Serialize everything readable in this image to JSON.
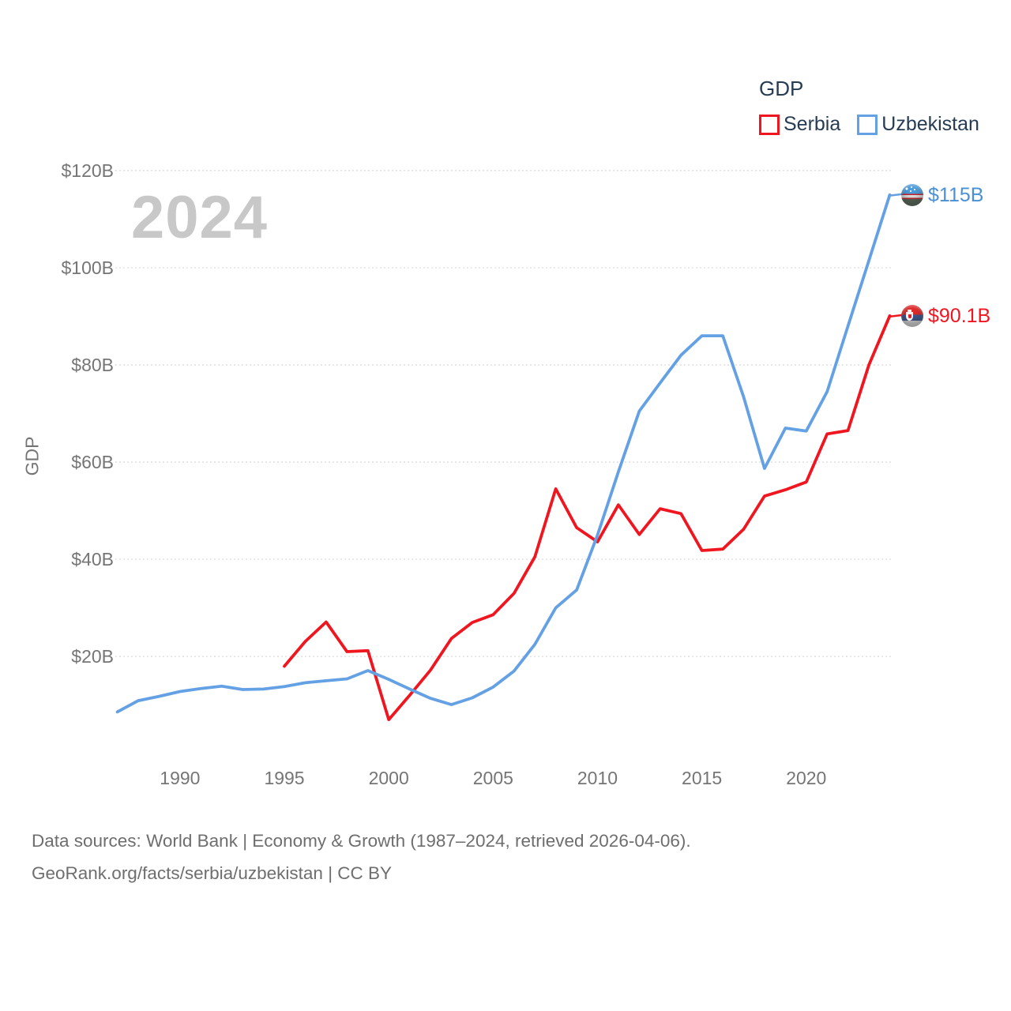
{
  "watermark": "2024",
  "y_axis_title": "GDP",
  "legend": {
    "title": "GDP",
    "entries": [
      {
        "label": "Serbia",
        "color": "#f01620"
      },
      {
        "label": "Uzbekistan",
        "color": "#64a1e4"
      }
    ]
  },
  "end_labels": {
    "uzbekistan": {
      "value": "$115B",
      "flag": "uzbekistan-flag"
    },
    "serbia": {
      "value": "$90.1B",
      "flag": "serbia-flag"
    }
  },
  "footer": {
    "line1": "Data sources: World Bank | Economy & Growth (1987–2024, retrieved 2026-04-06).",
    "line2": "GeoRank.org/facts/serbia/uzbekistan | CC BY"
  },
  "chart_data": {
    "type": "line",
    "title": "GDP",
    "ylabel": "GDP",
    "xlabel": "",
    "grid": "horizontal-dotted",
    "legend_position": "top-right",
    "xlim": [
      1987,
      2024
    ],
    "ylim": [
      0,
      120
    ],
    "x": [
      1987,
      1988,
      1989,
      1990,
      1991,
      1992,
      1993,
      1994,
      1995,
      1996,
      1997,
      1998,
      1999,
      2000,
      2001,
      2002,
      2003,
      2004,
      2005,
      2006,
      2007,
      2008,
      2009,
      2010,
      2011,
      2012,
      2013,
      2014,
      2015,
      2016,
      2017,
      2018,
      2019,
      2020,
      2021,
      2022,
      2023,
      2024
    ],
    "x_ticks": [
      1990,
      1995,
      2000,
      2005,
      2010,
      2015,
      2020
    ],
    "y_ticks": [
      {
        "value": 20,
        "label": "$20B"
      },
      {
        "value": 40,
        "label": "$40B"
      },
      {
        "value": 60,
        "label": "$60B"
      },
      {
        "value": 80,
        "label": "$80B"
      },
      {
        "value": 100,
        "label": "$100B"
      },
      {
        "value": 120,
        "label": "$120B"
      }
    ],
    "series": [
      {
        "name": "Serbia",
        "color": "#f01620",
        "values": [
          null,
          null,
          null,
          null,
          null,
          null,
          null,
          null,
          18.0,
          23.1,
          27.1,
          21.0,
          21.2,
          7.0,
          12.0,
          17.2,
          23.7,
          27.0,
          28.6,
          33.0,
          40.5,
          54.5,
          46.5,
          43.6,
          51.2,
          45.1,
          50.4,
          49.4,
          41.8,
          42.1,
          46.2,
          53.0,
          54.3,
          55.9,
          65.8,
          66.5,
          80.0,
          90.1
        ]
      },
      {
        "name": "Uzbekistan",
        "color": "#64a1e4",
        "values": [
          8.6,
          10.9,
          11.8,
          12.8,
          13.4,
          13.9,
          13.2,
          13.3,
          13.8,
          14.6,
          15.0,
          15.4,
          17.1,
          15.3,
          13.3,
          11.4,
          10.1,
          11.5,
          13.7,
          17.0,
          22.5,
          30.0,
          33.7,
          45.0,
          58.0,
          70.5,
          76.3,
          82.0,
          86.0,
          86.0,
          73.4,
          58.7,
          67.0,
          66.4,
          74.5,
          88.0,
          101.5,
          115.0
        ]
      }
    ]
  }
}
